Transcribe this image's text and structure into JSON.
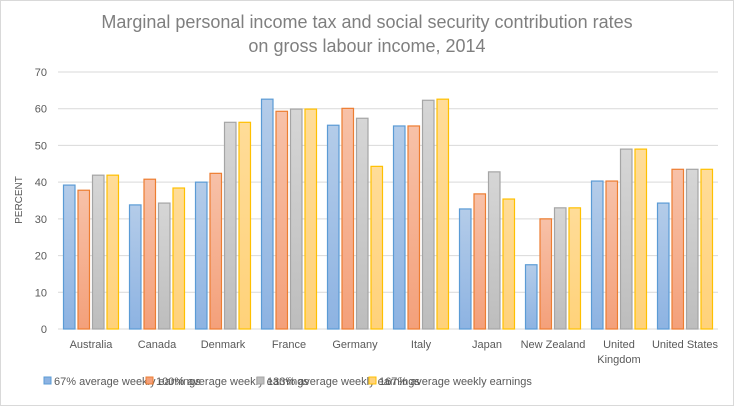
{
  "chart_data": {
    "type": "bar",
    "title": [
      "Marginal personal income tax and social security contribution rates",
      "on gross labour income, 2014"
    ],
    "xlabel": "",
    "ylabel": "PERCENT",
    "ylim": [
      0,
      70
    ],
    "yticks": [
      0,
      10,
      20,
      30,
      40,
      50,
      60,
      70
    ],
    "grid": true,
    "legend_position": "bottom",
    "categories": [
      [
        "Australia"
      ],
      [
        "Canada"
      ],
      [
        "Denmark"
      ],
      [
        "France"
      ],
      [
        "Germany"
      ],
      [
        "Italy"
      ],
      [
        "Japan"
      ],
      [
        "New Zealand"
      ],
      [
        "United",
        "Kingdom"
      ],
      [
        "United States"
      ]
    ],
    "series": [
      {
        "name": "67% average weekly earnings",
        "color": "#5b9bd5",
        "fill_top": "#b4cce9",
        "fill_bottom": "#8db3e2",
        "values": [
          39.2,
          33.8,
          40.0,
          62.6,
          55.5,
          55.3,
          32.7,
          17.5,
          40.3,
          34.3
        ]
      },
      {
        "name": "100% average weekly earnings",
        "color": "#ed7d31",
        "fill_top": "#f7c1a8",
        "fill_bottom": "#f4a07a",
        "values": [
          37.8,
          40.8,
          42.4,
          59.3,
          60.1,
          55.3,
          36.8,
          30.0,
          40.3,
          43.5
        ]
      },
      {
        "name": "133% average weekly earnings",
        "color": "#a5a5a5",
        "fill_top": "#d6d6d6",
        "fill_bottom": "#bdbdbd",
        "values": [
          41.9,
          34.3,
          56.3,
          59.9,
          57.4,
          62.3,
          42.8,
          33.0,
          49.0,
          43.5
        ]
      },
      {
        "name": "167% average weekly earnings",
        "color": "#ffc000",
        "fill_top": "#ffdc98",
        "fill_bottom": "#ffd27a",
        "values": [
          41.9,
          38.4,
          56.3,
          59.9,
          44.3,
          62.6,
          35.4,
          33.0,
          49.0,
          43.5
        ]
      }
    ]
  }
}
